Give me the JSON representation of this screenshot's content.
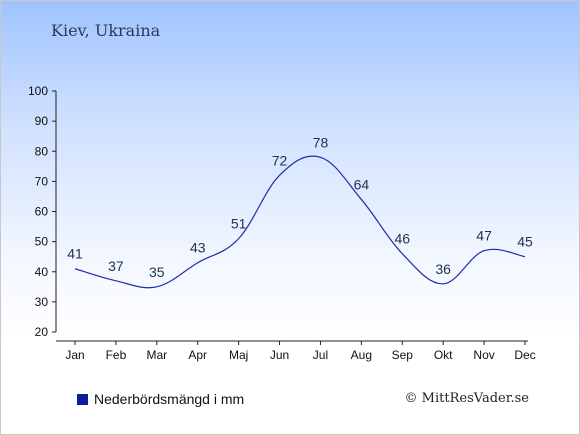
{
  "title": "Kiev, Ukraina",
  "credit": "© MittResVader.se",
  "legend": {
    "label": "Nederbördsmängd i mm",
    "color": "#0a1e9e"
  },
  "chart_data": {
    "type": "line",
    "categories": [
      "Jan",
      "Feb",
      "Mar",
      "Apr",
      "Maj",
      "Jun",
      "Jul",
      "Aug",
      "Sep",
      "Okt",
      "Nov",
      "Dec"
    ],
    "series": [
      {
        "name": "Nederbördsmängd i mm",
        "values": [
          41,
          37,
          35,
          43,
          51,
          72,
          78,
          64,
          46,
          36,
          47,
          45
        ]
      }
    ],
    "ylim": [
      20,
      100
    ],
    "yticks": [
      20,
      30,
      40,
      50,
      60,
      70,
      80,
      90,
      100
    ],
    "line_color": "#1a2fa8",
    "grid": false,
    "legend_position": "bottom-left"
  }
}
